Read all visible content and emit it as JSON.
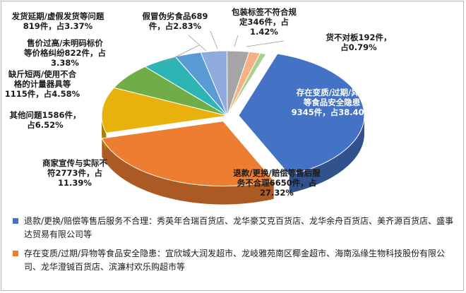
{
  "chart_data": {
    "type": "pie",
    "title": "",
    "style": "3d-exploded",
    "slices": [
      {
        "label": "存在变质/过期/异物等食品安全隐患",
        "count": 9345,
        "percent": 38.4,
        "color": "#4472c4",
        "text_lines": [
          "存在变质/过期/异物",
          "等食品安全隐患",
          "9345件，占38.40%"
        ]
      },
      {
        "label": "退款/更换/赔偿等售后服务不合理",
        "count": 6650,
        "percent": 27.32,
        "color": "#ed7d31",
        "text_lines": [
          "退款/更换/赔偿等售后服",
          "务不合理6650件，占",
          "27.32%"
        ]
      },
      {
        "label": "商家宣传与实际不符",
        "count": 2773,
        "percent": 11.39,
        "color": "#e9b10c",
        "text_lines": [
          "商家宣传与实际不",
          "符2773件，占",
          "11.39%"
        ]
      },
      {
        "label": "其他问题",
        "count": 1586,
        "percent": 6.52,
        "color": "#70ad47",
        "text_lines": [
          "其他问题1586件，",
          "占6.52%"
        ]
      },
      {
        "label": "缺斤短两/使用不合格的计量器具等",
        "count": 1115,
        "percent": 4.58,
        "color": "#2eb5b3",
        "text_lines": [
          "缺斤短两/使用不合",
          "格的计量器具等",
          "1115件，占4.58%"
        ]
      },
      {
        "label": "售价过高/未明码标价等价格纠纷",
        "count": 822,
        "percent": 3.38,
        "color": "#5b9bd5",
        "text_lines": [
          "售价过高/未明码标价",
          "等价格纠纷822件，占",
          "3.38%"
        ]
      },
      {
        "label": "发货延期/虚假发货等问题",
        "count": 819,
        "percent": 3.37,
        "color": "#8faadc",
        "text_lines": [
          "发货延期/虚假发货等问题",
          "819件，占3.37%"
        ]
      },
      {
        "label": "假冒伪劣食品",
        "count": 689,
        "percent": 2.83,
        "color": "#a5a5a5",
        "text_lines": [
          "假冒伪劣食品689",
          "件，占2.83%"
        ]
      },
      {
        "label": "包装标签不符合规定",
        "count": 346,
        "percent": 1.42,
        "color": "#f4b183",
        "text_lines": [
          "包装标签不符合规",
          "定346件，占",
          "1.42%"
        ]
      },
      {
        "label": "货不对板",
        "count": 192,
        "percent": 0.79,
        "color": "#a9d18e",
        "text_lines": [
          "货不对板192件，",
          "占0.79%"
        ]
      }
    ],
    "legend": "none",
    "notes": [
      {
        "color": "#4472c4",
        "text": "退款/更换/赔偿等售后服务不合理：秀英年合瑞百货店、龙华豪艾克百货店、龙华余舟百货店、美齐源百货店、盛事达贸易有限公司等"
      },
      {
        "color": "#ed7d31",
        "text": "存在变质/过期/异物等食品安全隐患：宜欣城大润发超市、龙岐雅苑南区椰金超市、海南泓缘生物科技股份有限公司、龙华澄铖百货店、滨濂村欢乐购超市等"
      }
    ]
  }
}
